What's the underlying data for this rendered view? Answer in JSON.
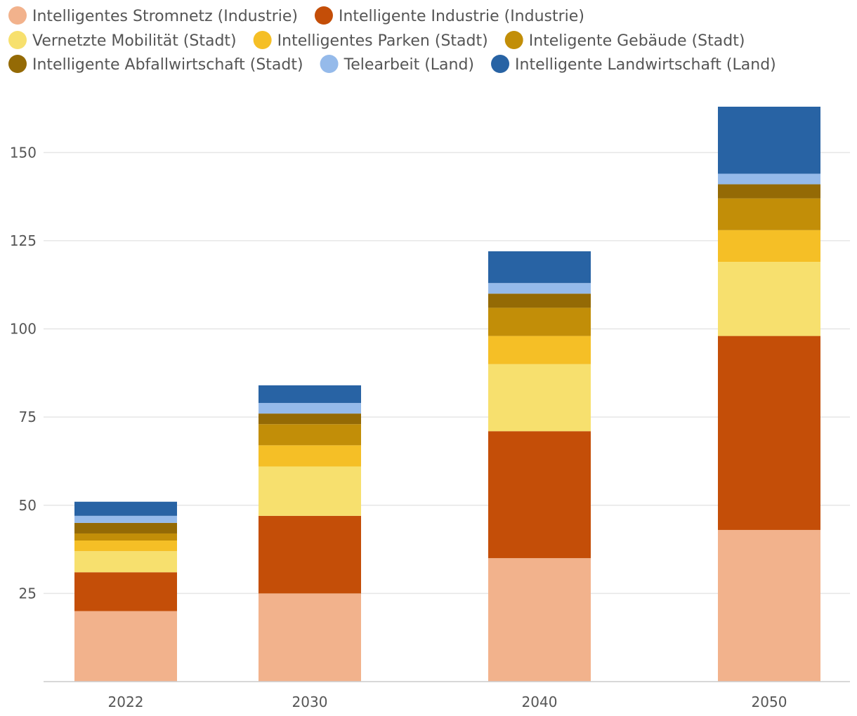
{
  "chart_data": {
    "type": "bar",
    "stacked": true,
    "title": "",
    "xlabel": "",
    "ylabel": "",
    "categories": [
      "2022",
      "2030",
      "2040",
      "2050"
    ],
    "ylim": [
      0,
      163
    ],
    "yticks": [
      25,
      50,
      75,
      100,
      125,
      150
    ],
    "grid": true,
    "legend_position": "top",
    "series": [
      {
        "name": "Intelligentes Stromnetz (Industrie)",
        "color": "#F2B28C",
        "values": [
          20,
          25,
          35,
          43
        ]
      },
      {
        "name": "Intelligente Industrie (Industrie)",
        "color": "#C44E08",
        "values": [
          11,
          22,
          36,
          55
        ]
      },
      {
        "name": "Vernetzte Mobilität (Stadt)",
        "color": "#F7E06E",
        "values": [
          6,
          14,
          19,
          21
        ]
      },
      {
        "name": "Intelligentes Parken (Stadt)",
        "color": "#F5BF26",
        "values": [
          3,
          6,
          8,
          9
        ]
      },
      {
        "name": "Inteligente Gebäude (Stadt)",
        "color": "#C28E08",
        "values": [
          2,
          6,
          8,
          9
        ]
      },
      {
        "name": "Intelligente Abfallwirtschaft (Stadt)",
        "color": "#946A05",
        "values": [
          3,
          3,
          4,
          4
        ]
      },
      {
        "name": "Telearbeit (Land)",
        "color": "#95BAEA",
        "values": [
          2,
          3,
          3,
          3
        ]
      },
      {
        "name": "Intelligente Landwirtschaft (Land)",
        "color": "#2863A4",
        "values": [
          4,
          5,
          9,
          19
        ]
      }
    ]
  }
}
